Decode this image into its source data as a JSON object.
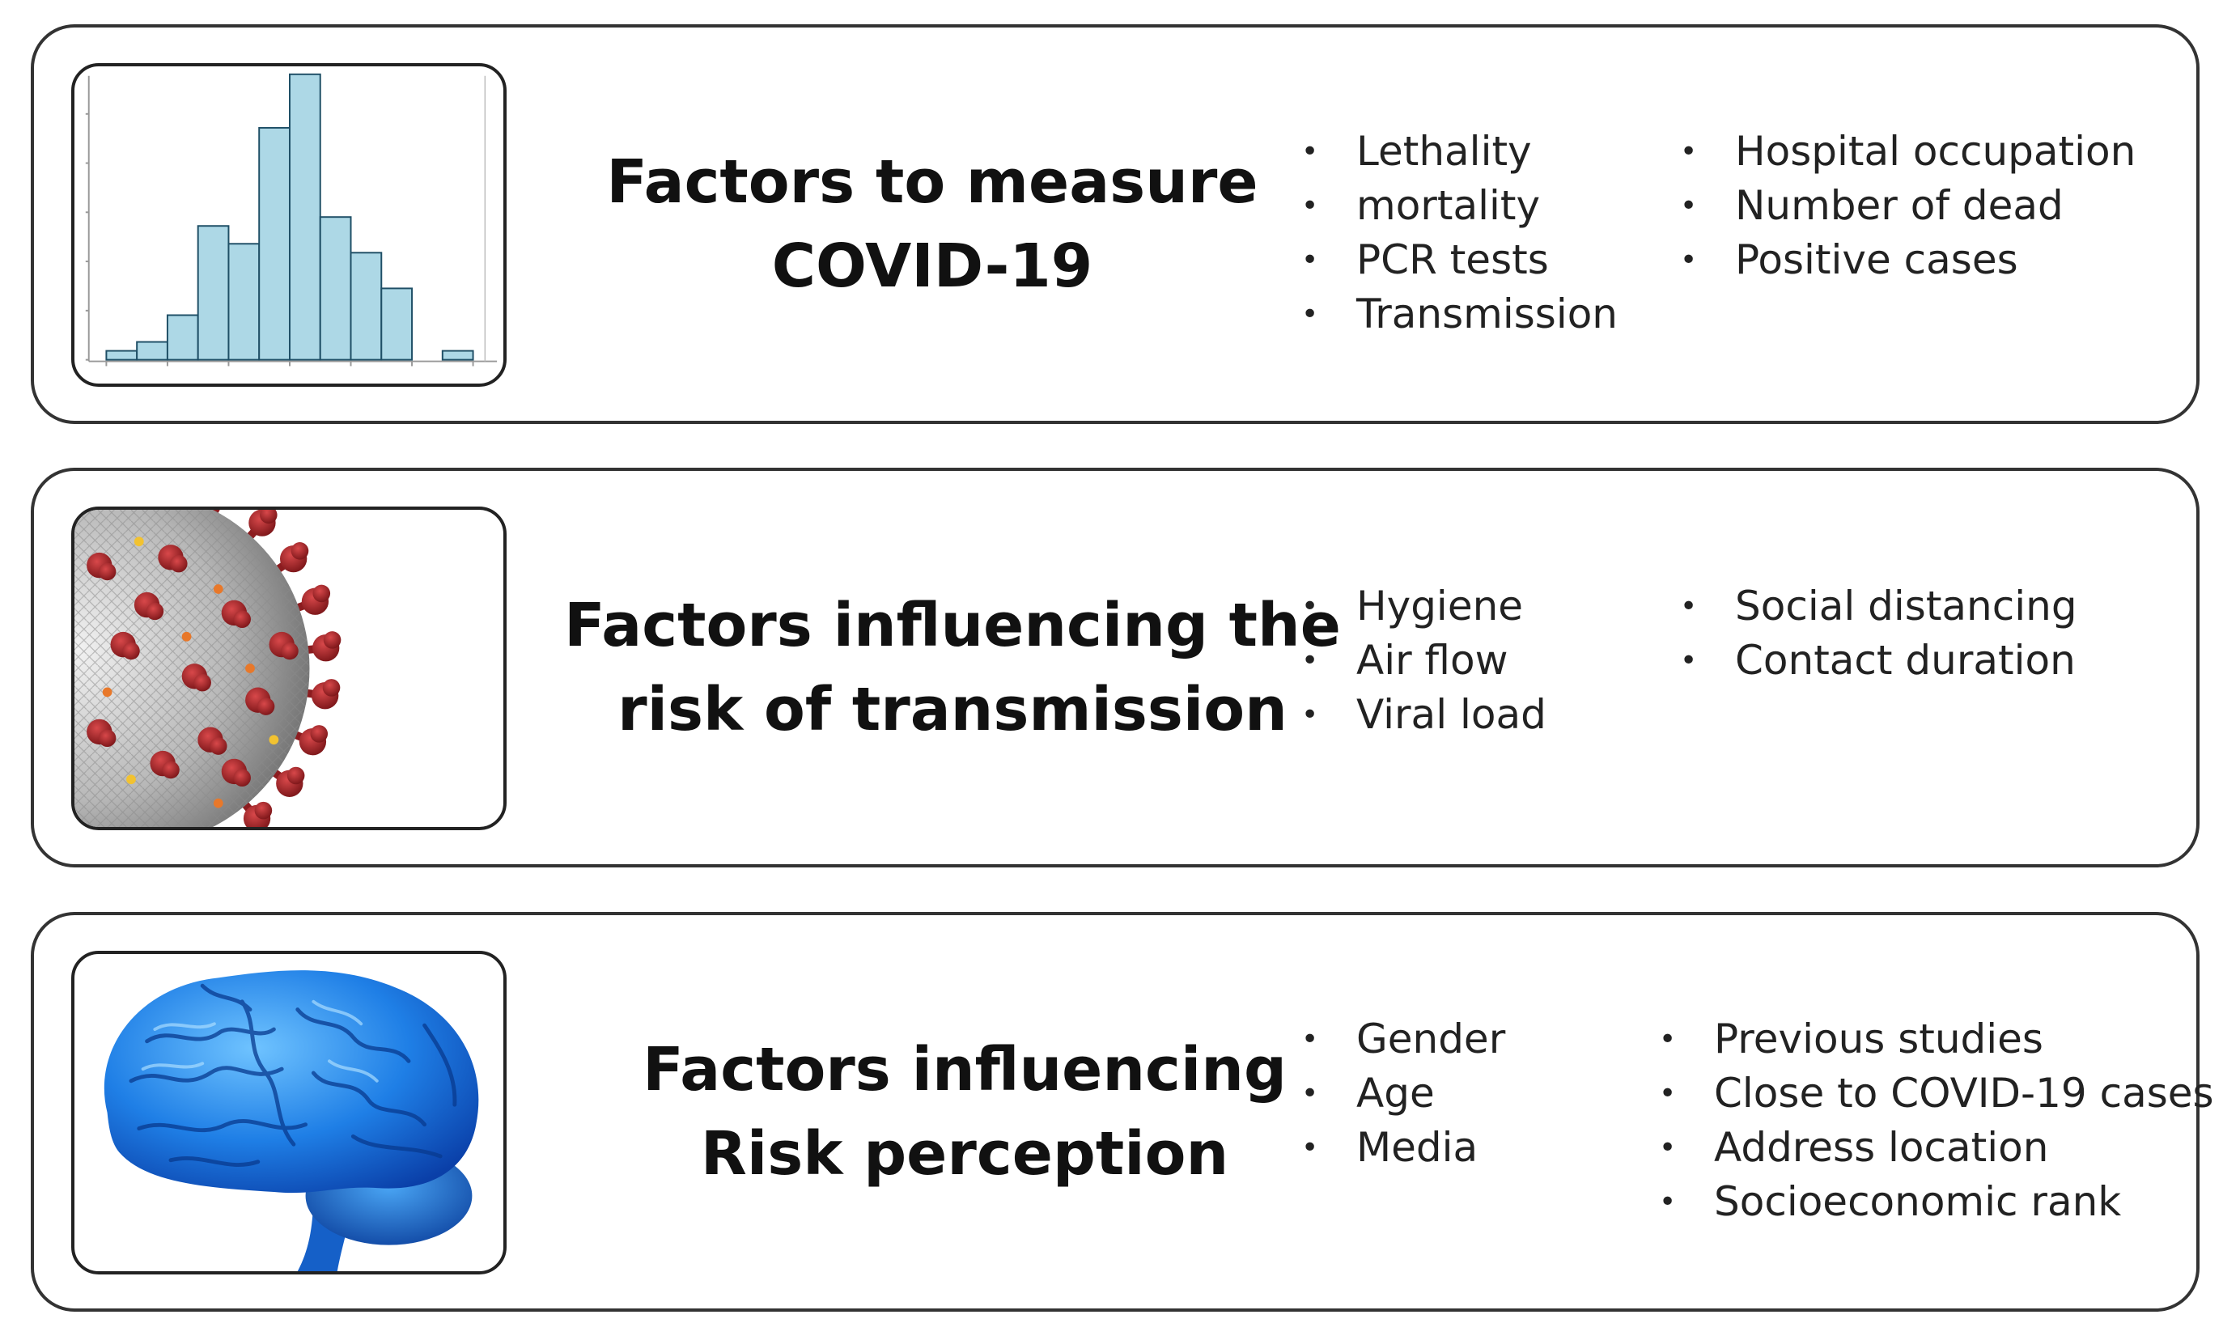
{
  "panels": [
    {
      "title_line1": "Factors to measure",
      "title_line2": "COVID-19",
      "image": "histogram-chart",
      "list_left": [
        "Lethality",
        "mortality",
        "PCR tests",
        "Transmission"
      ],
      "list_right": [
        "Hospital occupation",
        "Number of dead",
        "Positive cases"
      ]
    },
    {
      "title_line1": "Factors influencing the",
      "title_line2": "risk of transmission",
      "image": "coronavirus-illustration",
      "list_left": [
        "Hygiene",
        "Air flow",
        "Viral load"
      ],
      "list_right": [
        "Social distancing",
        "Contact duration"
      ]
    },
    {
      "title_line1": "Factors influencing",
      "title_line2": "Risk perception",
      "image": "brain-illustration",
      "list_left": [
        "Gender",
        "Age",
        "Media"
      ],
      "list_right": [
        "Previous studies",
        "Close to COVID-19 cases",
        "Address location",
        "Socioeconomic rank"
      ]
    }
  ],
  "histogram": {
    "frequencies": [
      1,
      2,
      5,
      15,
      13,
      26,
      32,
      16,
      12,
      8,
      0,
      1
    ],
    "bar_color": "#add8e6"
  },
  "bullet_char": "•"
}
